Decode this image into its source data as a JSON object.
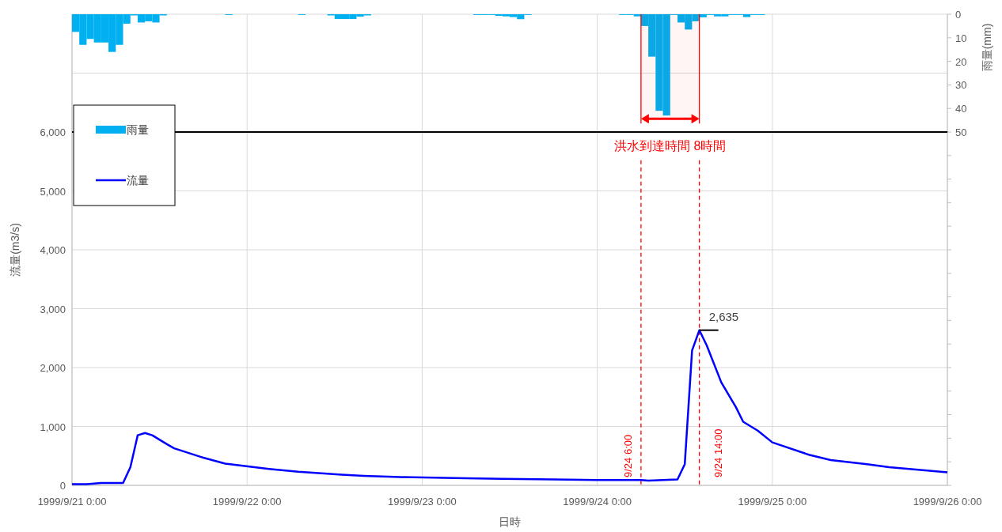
{
  "chart_data": {
    "type": "line",
    "xlabel": "日時",
    "ylabel": "流量(m3/s)",
    "y2label": "雨量(mm)",
    "series": [
      {
        "name": "雨量",
        "type": "bar",
        "axis": "y2",
        "color": "#00b0f0",
        "x": [
          "1999-09-21T00:00",
          "1999-09-21T01:00",
          "1999-09-21T02:00",
          "1999-09-21T03:00",
          "1999-09-21T04:00",
          "1999-09-21T05:00",
          "1999-09-21T06:00",
          "1999-09-21T07:00",
          "1999-09-21T08:00",
          "1999-09-21T09:00",
          "1999-09-21T10:00",
          "1999-09-21T11:00",
          "1999-09-21T12:00",
          "1999-09-21T21:00",
          "1999-09-22T07:00",
          "1999-09-22T11:00",
          "1999-09-22T12:00",
          "1999-09-22T13:00",
          "1999-09-22T14:00",
          "1999-09-22T15:00",
          "1999-09-22T16:00",
          "1999-09-23T07:00",
          "1999-09-23T08:00",
          "1999-09-23T09:00",
          "1999-09-23T10:00",
          "1999-09-23T11:00",
          "1999-09-23T12:00",
          "1999-09-23T13:00",
          "1999-09-23T14:00",
          "1999-09-24T03:00",
          "1999-09-24T04:00",
          "1999-09-24T05:00",
          "1999-09-24T06:00",
          "1999-09-24T07:00",
          "1999-09-24T08:00",
          "1999-09-24T09:00",
          "1999-09-24T10:00",
          "1999-09-24T11:00",
          "1999-09-24T12:00",
          "1999-09-24T13:00",
          "1999-09-24T14:00",
          "1999-09-24T15:00",
          "1999-09-24T16:00",
          "1999-09-24T17:00",
          "1999-09-24T18:00",
          "1999-09-24T19:00",
          "1999-09-24T20:00",
          "1999-09-24T21:00",
          "1999-09-24T22:00"
        ],
        "values": [
          7.5,
          13,
          10.5,
          12,
          12,
          16,
          13,
          4,
          0.5,
          3.5,
          3,
          3.5,
          0.5,
          0.3,
          0.3,
          0.5,
          2,
          2,
          2,
          1,
          0.5,
          0.3,
          0.3,
          0.3,
          0.7,
          0.9,
          1.2,
          2.1,
          0.3,
          0.3,
          0.3,
          0.9,
          5,
          18,
          41,
          43,
          0.3,
          3.5,
          6.5,
          3,
          1.3,
          0.3,
          0.9,
          0.9,
          0.3,
          0.3,
          1.2,
          0.3,
          0.3
        ]
      },
      {
        "name": "流量",
        "color": "#0000ff",
        "x": [
          "1999-09-21T00:00",
          "1999-09-21T02:00",
          "1999-09-21T04:00",
          "1999-09-21T06:00",
          "1999-09-21T07:00",
          "1999-09-21T08:00",
          "1999-09-21T09:00",
          "1999-09-21T10:00",
          "1999-09-21T11:00",
          "1999-09-21T13:00",
          "1999-09-21T14:00",
          "1999-09-21T18:00",
          "1999-09-21T21:00",
          "1999-09-22T03:00",
          "1999-09-22T07:00",
          "1999-09-22T13:00",
          "1999-09-22T16:00",
          "1999-09-22T21:00",
          "1999-09-23T06:00",
          "1999-09-23T11:00",
          "1999-09-23T18:00",
          "1999-09-24T00:00",
          "1999-09-24T06:00",
          "1999-09-24T07:00",
          "1999-09-24T09:00",
          "1999-09-24T11:00",
          "1999-09-24T12:00",
          "1999-09-24T13:00",
          "1999-09-24T14:00",
          "1999-09-24T15:00",
          "1999-09-24T17:00",
          "1999-09-24T19:00",
          "1999-09-24T20:00",
          "1999-09-24T22:00",
          "1999-09-25T00:00",
          "1999-09-25T05:00",
          "1999-09-25T08:00",
          "1999-09-25T13:00",
          "1999-09-25T16:00",
          "1999-09-26T00:00"
        ],
        "values": [
          20,
          20,
          40,
          40,
          40,
          310,
          850,
          890,
          850,
          700,
          630,
          470,
          370,
          280,
          230,
          180,
          160,
          140,
          120,
          110,
          100,
          90,
          90,
          80,
          90,
          100,
          360,
          2290,
          2635,
          2380,
          1750,
          1330,
          1080,
          930,
          730,
          520,
          430,
          360,
          310,
          220
        ]
      }
    ],
    "xlim": [
      "1999-09-21T00:00",
      "1999-09-26T00:00"
    ],
    "xticks": [
      {
        "value": "1999-09-21",
        "label": "1999/9/21 0:00"
      },
      {
        "value": "1999-09-22",
        "label": "1999/9/22 0:00"
      },
      {
        "value": "1999-09-23",
        "label": "1999/9/23 0:00"
      },
      {
        "value": "1999-09-24",
        "label": "1999/9/24 0:00"
      },
      {
        "value": "1999-09-25",
        "label": "1999/9/25 0:00"
      },
      {
        "value": "1999-09-26",
        "label": "1999/9/26 0:00"
      }
    ],
    "ylim": [
      0,
      8000
    ],
    "yticks": [
      {
        "value": 0,
        "label": "0"
      },
      {
        "value": 1000,
        "label": "1,000"
      },
      {
        "value": 2000,
        "label": "2,000"
      },
      {
        "value": 3000,
        "label": "3,000"
      },
      {
        "value": 4000,
        "label": "4,000"
      },
      {
        "value": 5000,
        "label": "5,000"
      },
      {
        "value": 6000,
        "label": "6,000"
      },
      {
        "value": 7000,
        "label": null
      },
      {
        "value": 8000,
        "label": null
      }
    ],
    "y2lim": [
      200,
      0
    ],
    "y2ticks": [
      0,
      10,
      20,
      30,
      40,
      50,
      {
        "value": 60,
        "label": null
      },
      {
        "value": 70,
        "label": null
      },
      {
        "value": 80,
        "label": null
      },
      {
        "value": 90,
        "label": null
      },
      {
        "value": 100,
        "label": null
      },
      {
        "value": 110,
        "label": null
      },
      {
        "value": 120,
        "label": null
      },
      {
        "value": 130,
        "label": null
      },
      {
        "value": 140,
        "label": null
      },
      {
        "value": 150,
        "label": null
      },
      {
        "value": 160,
        "label": null
      },
      {
        "value": 170,
        "label": null
      },
      {
        "value": 180,
        "label": null
      },
      {
        "value": 190,
        "label": null
      },
      {
        "value": 200,
        "label": null
      }
    ],
    "ref_lines": [
      {
        "axis": "y",
        "value": 6000,
        "color": "#000000",
        "line_style": "solid"
      },
      {
        "axis": "x",
        "value": "1999-09-24T06:00",
        "label": "9/24 6:00",
        "color": "#ff0000",
        "line_style": "dashed"
      },
      {
        "axis": "x",
        "value": "1999-09-24T14:00",
        "label": "9/24 14:00",
        "color": "#ff0000",
        "line_style": "dashed"
      }
    ],
    "bands": [
      {
        "axis": "x",
        "from": "1999-09-24T06:00",
        "to": "1999-09-24T14:00",
        "label": "洪水到達時間 8時間",
        "color": "#ff0000"
      }
    ],
    "annotations": [
      {
        "text": "2,635",
        "x": "1999-09-24T14:00",
        "y": 2635
      }
    ],
    "grid": true,
    "legend": "top left"
  }
}
